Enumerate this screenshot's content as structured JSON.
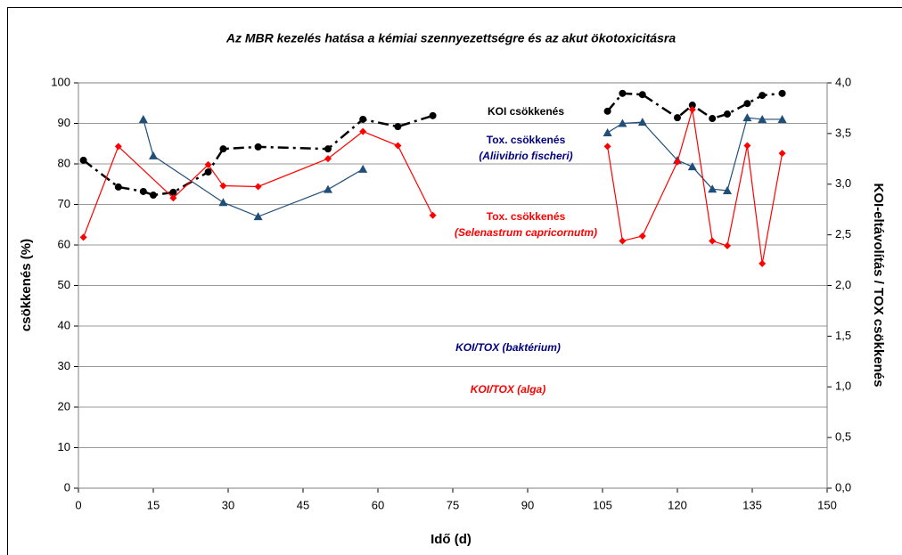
{
  "chart_data": {
    "type": "line",
    "title": "Az MBR kezelés hatása a kémiai szennyezettségre és az akut ökotoxicitásra",
    "xlabel": "Idő (d)",
    "ylabel": "csökkenés (%)",
    "y2label": "KOI-eltávolítás / TOX csökkenés",
    "xlim": [
      0,
      150
    ],
    "xticks": [
      0,
      15,
      30,
      45,
      60,
      75,
      90,
      105,
      120,
      135,
      150
    ],
    "ylim": [
      0,
      100
    ],
    "yticks": [
      0,
      10,
      20,
      30,
      40,
      50,
      60,
      70,
      80,
      90,
      100
    ],
    "y2lim": [
      0,
      4
    ],
    "y2ticks": [
      {
        "value": 0,
        "label": "0,0"
      },
      {
        "value": 0.5,
        "label": "0,5"
      },
      {
        "value": 1,
        "label": "1,0"
      },
      {
        "value": 1.5,
        "label": "1,5"
      },
      {
        "value": 2,
        "label": "2,0"
      },
      {
        "value": 2.5,
        "label": "2,5"
      },
      {
        "value": 3,
        "label": "3,0"
      },
      {
        "value": 3.5,
        "label": "3,5"
      },
      {
        "value": 4,
        "label": "4,0"
      }
    ],
    "grid": true,
    "annotations": [
      {
        "text": "KOI csökkenés",
        "color": "#000000"
      },
      {
        "text": "Tox. csökkenés",
        "color": "#000080"
      },
      {
        "text": "(Aliivibrio fischeri)",
        "color": "#000080"
      },
      {
        "text": "Tox. csökkenés",
        "color": "#ff0000"
      },
      {
        "text": "(Selenastrum capricornutm)",
        "color": "#ff0000"
      },
      {
        "text": "KOI/TOX  (baktérium)",
        "color": "#000080"
      },
      {
        "text": "KOI/TOX (alga)",
        "color": "#ff0000"
      }
    ],
    "series": [
      {
        "color": "#000000",
        "marker": "circle",
        "line_style": "dashdot",
        "x": [
          1,
          8,
          13,
          15,
          19,
          26,
          29,
          36,
          50,
          57,
          64,
          71,
          null,
          106,
          109,
          113,
          120,
          123,
          127,
          130,
          134,
          137,
          141
        ],
        "values": [
          80.9,
          74.3,
          73.2,
          72.3,
          73,
          78,
          83.7,
          84.2,
          83.7,
          91,
          89.2,
          91.9,
          null,
          93,
          97.4,
          97.1,
          91.4,
          94.5,
          91.2,
          92.3,
          94.9,
          96.9,
          97.4
        ]
      },
      {
        "color": "#1f4e79",
        "marker": "triangle",
        "line_style": "solid",
        "x": [
          13,
          15,
          29,
          36,
          50,
          57,
          null,
          106,
          109,
          113,
          120,
          123,
          127,
          130,
          134,
          137,
          141
        ],
        "values": [
          91,
          82,
          70.5,
          67,
          73.7,
          78.7,
          null,
          87.7,
          90,
          90.3,
          80.9,
          79.3,
          73.8,
          73.4,
          91.4,
          91,
          91
        ]
      },
      {
        "color": "#ff0000",
        "marker": "diamond",
        "line_style": "solid",
        "x": [
          1,
          8,
          19,
          26,
          29,
          36,
          50,
          57,
          64,
          71,
          null,
          106,
          109,
          113,
          120,
          123,
          127,
          130,
          134,
          137,
          141
        ],
        "values": [
          61.9,
          84.3,
          71.6,
          79.8,
          74.6,
          74.4,
          81.3,
          88,
          84.5,
          67.3,
          null,
          84.3,
          61,
          62.2,
          80.5,
          93.4,
          61,
          59.8,
          84.5,
          55.4,
          82.6
        ]
      }
    ]
  }
}
